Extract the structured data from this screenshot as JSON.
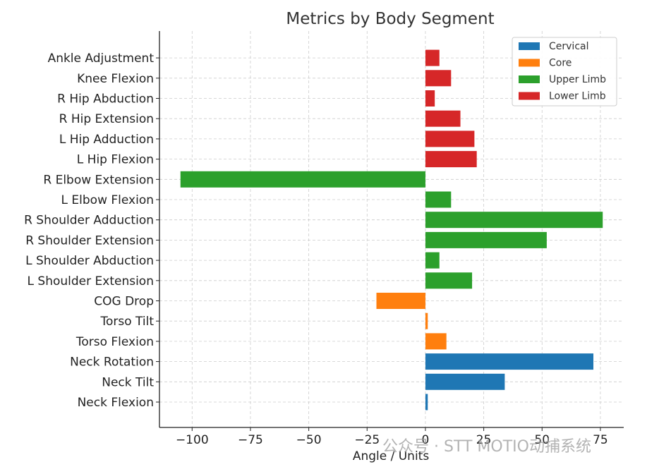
{
  "chart_data": {
    "type": "bar",
    "orientation": "horizontal",
    "title": "Metrics by Body Segment",
    "xlabel": "Angle / Units",
    "ylabel": "",
    "xlim": [
      -114,
      85
    ],
    "xticks": [
      -100,
      -75,
      -50,
      -25,
      0,
      25,
      50,
      75
    ],
    "xtick_labels": [
      "−100",
      "−75",
      "−50",
      "−25",
      "0",
      "25",
      "50",
      "75"
    ],
    "grid": true,
    "legend_position": "top-right",
    "categories": [
      {
        "label": "Neck Flexion",
        "value": 1,
        "group": "Cervical"
      },
      {
        "label": "Neck Tilt",
        "value": 34,
        "group": "Cervical"
      },
      {
        "label": "Neck Rotation",
        "value": 72,
        "group": "Cervical"
      },
      {
        "label": "Torso Flexion",
        "value": 9,
        "group": "Core"
      },
      {
        "label": "Torso Tilt",
        "value": 1,
        "group": "Core"
      },
      {
        "label": "COG Drop",
        "value": -21,
        "group": "Core"
      },
      {
        "label": "L Shoulder Extension",
        "value": 20,
        "group": "Upper Limb"
      },
      {
        "label": "L Shoulder Abduction",
        "value": 6,
        "group": "Upper Limb"
      },
      {
        "label": "R Shoulder Extension",
        "value": 52,
        "group": "Upper Limb"
      },
      {
        "label": "R Shoulder Adduction",
        "value": 76,
        "group": "Upper Limb"
      },
      {
        "label": "L Elbow Flexion",
        "value": 11,
        "group": "Upper Limb"
      },
      {
        "label": "R Elbow Extension",
        "value": -105,
        "group": "Upper Limb"
      },
      {
        "label": "L Hip Flexion",
        "value": 22,
        "group": "Lower Limb"
      },
      {
        "label": "L Hip Adduction",
        "value": 21,
        "group": "Lower Limb"
      },
      {
        "label": "R Hip Extension",
        "value": 15,
        "group": "Lower Limb"
      },
      {
        "label": "R Hip Abduction",
        "value": 4,
        "group": "Lower Limb"
      },
      {
        "label": "Knee Flexion",
        "value": 11,
        "group": "Lower Limb"
      },
      {
        "label": "Ankle Adjustment",
        "value": 6,
        "group": "Lower Limb"
      }
    ],
    "legend": [
      {
        "name": "Cervical",
        "color": "#1f77b4"
      },
      {
        "name": "Core",
        "color": "#ff7f0e"
      },
      {
        "name": "Upper Limb",
        "color": "#2ca02c"
      },
      {
        "name": "Lower Limb",
        "color": "#d62728"
      }
    ]
  },
  "watermark": "公众号 · STT MOTIO动捕系统"
}
